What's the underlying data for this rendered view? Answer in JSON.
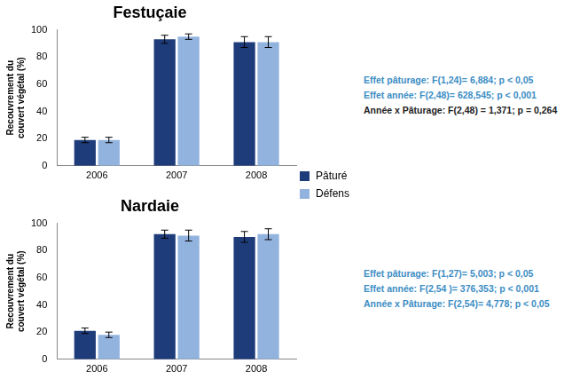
{
  "chart_data": [
    {
      "type": "bar",
      "title": "Festuçaie",
      "y_label": "Recouvrement du couvert végétal (%)",
      "categories": [
        "2006",
        "2007",
        "2008"
      ],
      "series": [
        {
          "name": "Pâturé",
          "color": "#1f3c7a",
          "values": [
            19,
            93,
            91
          ],
          "errors": [
            2,
            3,
            4
          ]
        },
        {
          "name": "Défens",
          "color": "#93b3df",
          "values": [
            19,
            95,
            91
          ],
          "errors": [
            2,
            2,
            4
          ]
        }
      ],
      "ylim": [
        0,
        100
      ],
      "yticks": [
        0,
        20,
        40,
        60,
        80,
        100
      ],
      "grid": false,
      "legend": "right",
      "annotations": [
        {
          "text": "Effet pâturage: F(1,24)= 6,884;  p < 0,05",
          "color": "#3c8dc4"
        },
        {
          "text": "Effet année: F(2,48)= 628,545;  p < 0,001",
          "color": "#3c8dc4"
        },
        {
          "text": "Année x Pâturage: F(2,48) = 1,371;  p = 0,264",
          "color": "#222222"
        }
      ]
    },
    {
      "type": "bar",
      "title": "Nardaie",
      "y_label": "Recouvrement du couvert végétal (%)",
      "categories": [
        "2006",
        "2007",
        "2008"
      ],
      "series": [
        {
          "name": "Pâturé",
          "color": "#1f3c7a",
          "values": [
            21,
            92,
            90
          ],
          "errors": [
            2,
            3,
            4
          ]
        },
        {
          "name": "Défens",
          "color": "#93b3df",
          "values": [
            18,
            91,
            92
          ],
          "errors": [
            2,
            4,
            4
          ]
        }
      ],
      "ylim": [
        0,
        100
      ],
      "yticks": [
        0,
        20,
        40,
        60,
        80,
        100
      ],
      "grid": false,
      "annotations": [
        {
          "text": "Effet pâturage: F(1,27)= 5,003;  p < 0,05",
          "color": "#3c8dc4"
        },
        {
          "text": "Effet année: F(2,54 )= 376,353;  p < 0,001",
          "color": "#3c8dc4"
        },
        {
          "text": "Année x Pâturage: F(2,54)= 4,778;  p < 0,05",
          "color": "#3c8dc4"
        }
      ]
    }
  ]
}
